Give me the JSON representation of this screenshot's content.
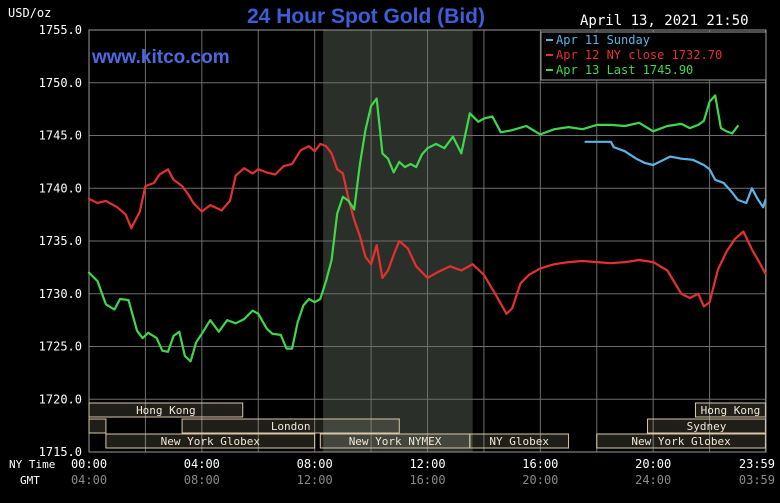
{
  "header": {
    "unit": "USD/oz",
    "title": "24 Hour Spot Gold (Bid)",
    "datetime": "April 13, 2021 21:50",
    "site": "www.kitco.com"
  },
  "colors": {
    "background": "#000000",
    "plot_bg": "#000000",
    "grid": "#6e6e6e",
    "title": "#3a5fd9",
    "site": "#4a6bdf",
    "shaded": "#2a2f2a",
    "session_fill": "#d8c7a6",
    "session_text": "#000000",
    "axis_text": "#ffffff"
  },
  "axis": {
    "left_label_top": "USD/oz",
    "row_label_ny": "NY Time",
    "row_label_gmt": "GMT"
  },
  "sessions": [
    {
      "label": "Hong Kong",
      "row": 0,
      "start": 0,
      "end": 5.45,
      "filled": true
    },
    {
      "label": "",
      "row": 1,
      "start": 0,
      "end": 0.6,
      "filled": true
    },
    {
      "label": "London",
      "row": 1,
      "start": 3.3,
      "end": 11.0,
      "filled": true
    },
    {
      "label": "New York Globex",
      "row": 2,
      "start": 0.6,
      "end": 8.0,
      "filled": true
    },
    {
      "label": "New York NYMEX",
      "row": 2,
      "start": 8.2,
      "end": 13.5,
      "filled": true
    },
    {
      "label": "NY Globex",
      "row": 2,
      "start": 13.5,
      "end": 17.0,
      "filled": true
    },
    {
      "label": "Hong Kong",
      "row": 0,
      "start": 21.5,
      "end": 23.98,
      "filled": true
    },
    {
      "label": "Sydney",
      "row": 1,
      "start": 19.8,
      "end": 23.98,
      "filled": true
    },
    {
      "label": "New York Globex",
      "row": 2,
      "start": 18.0,
      "end": 23.98,
      "filled": true
    }
  ],
  "chart_data": {
    "type": "line",
    "title": "24 Hour Spot Gold (Bid)",
    "xlabel": "NY Time",
    "ylabel": "USD/oz",
    "ylim": [
      1715,
      1755
    ],
    "xlim": [
      0,
      24
    ],
    "yticks": [
      "1715.0",
      "1720.0",
      "1725.0",
      "1730.0",
      "1735.0",
      "1740.0",
      "1745.0",
      "1750.0",
      "1755.0"
    ],
    "yticks_values": [
      1715,
      1720,
      1725,
      1730,
      1735,
      1740,
      1745,
      1750,
      1755
    ],
    "xticks_ny": [
      "00:00",
      "04:00",
      "08:00",
      "12:00",
      "16:00",
      "20:00",
      "23:59"
    ],
    "xticks_gmt": [
      "04:00",
      "08:00",
      "12:00",
      "16:00",
      "20:00",
      "24:00",
      "03:59"
    ],
    "xticks_values": [
      0,
      4,
      8,
      12,
      16,
      20,
      23.98
    ],
    "shaded_range": [
      8.3,
      13.6
    ],
    "grid": true,
    "legend_position": "top-right",
    "series": [
      {
        "name": "Apr 11 Sunday",
        "color": "#5ab4e6",
        "x": [
          17.6,
          18.0,
          18.5,
          18.6,
          19.0,
          19.4,
          19.7,
          20.0,
          20.3,
          20.6,
          21.0,
          21.4,
          21.8,
          22.0,
          22.2,
          22.5,
          22.8,
          23.0,
          23.3,
          23.5,
          23.7,
          23.9,
          23.98
        ],
        "values": [
          1744.4,
          1744.4,
          1744.4,
          1743.9,
          1743.5,
          1742.8,
          1742.4,
          1742.2,
          1742.6,
          1743.0,
          1742.8,
          1742.7,
          1742.2,
          1741.8,
          1740.8,
          1740.5,
          1739.6,
          1738.9,
          1738.6,
          1740.0,
          1739.0,
          1738.2,
          1738.9
        ]
      },
      {
        "name": "Apr 12 NY close 1732.70",
        "color": "#e53030",
        "x": [
          0,
          0.3,
          0.6,
          1.0,
          1.3,
          1.5,
          1.8,
          2.0,
          2.3,
          2.5,
          2.8,
          3.0,
          3.3,
          3.5,
          3.7,
          4.0,
          4.3,
          4.7,
          5.0,
          5.2,
          5.5,
          5.8,
          6.0,
          6.3,
          6.6,
          6.9,
          7.2,
          7.5,
          7.8,
          8.0,
          8.2,
          8.4,
          8.6,
          8.8,
          9.0,
          9.2,
          9.4,
          9.6,
          9.8,
          10.0,
          10.2,
          10.4,
          10.6,
          10.8,
          11.0,
          11.3,
          11.6,
          12.0,
          12.4,
          12.8,
          13.2,
          13.6,
          14.0,
          14.4,
          14.8,
          15.0,
          15.3,
          15.6,
          16.0,
          16.5,
          17.0,
          17.5,
          18.0,
          18.5,
          19.0,
          19.5,
          20.0,
          20.5,
          21.0,
          21.3,
          21.6,
          21.8,
          22.0,
          22.3,
          22.6,
          22.9,
          23.2,
          23.5,
          23.7,
          23.98
        ],
        "values": [
          1739.0,
          1738.6,
          1738.8,
          1738.2,
          1737.5,
          1736.2,
          1737.8,
          1740.2,
          1740.5,
          1741.3,
          1741.8,
          1740.8,
          1740.2,
          1739.5,
          1738.6,
          1737.8,
          1738.4,
          1737.9,
          1738.8,
          1741.2,
          1741.9,
          1741.4,
          1741.8,
          1741.5,
          1741.3,
          1742.1,
          1742.3,
          1743.6,
          1744.0,
          1743.5,
          1744.2,
          1744.0,
          1743.3,
          1741.8,
          1741.4,
          1739.0,
          1737.0,
          1735.5,
          1733.5,
          1732.8,
          1734.6,
          1731.5,
          1732.2,
          1733.7,
          1735.0,
          1734.3,
          1732.6,
          1731.5,
          1732.1,
          1732.6,
          1732.2,
          1732.8,
          1731.8,
          1730.0,
          1728.1,
          1728.6,
          1731.0,
          1731.8,
          1732.4,
          1732.8,
          1733.0,
          1733.1,
          1733.0,
          1732.9,
          1733.0,
          1733.2,
          1733.0,
          1732.2,
          1730.0,
          1729.6,
          1730.0,
          1728.8,
          1729.2,
          1732.3,
          1734.0,
          1735.2,
          1735.9,
          1734.2,
          1733.3,
          1731.9
        ]
      },
      {
        "name": "Apr 13 Last 1745.90",
        "color": "#3fd84a",
        "x": [
          0,
          0.3,
          0.6,
          0.9,
          1.1,
          1.4,
          1.7,
          1.9,
          2.1,
          2.4,
          2.6,
          2.8,
          3.0,
          3.2,
          3.4,
          3.6,
          3.8,
          4.0,
          4.3,
          4.6,
          4.9,
          5.2,
          5.5,
          5.8,
          6.0,
          6.3,
          6.5,
          6.8,
          7.0,
          7.2,
          7.4,
          7.6,
          7.8,
          8.0,
          8.2,
          8.4,
          8.6,
          8.8,
          9.0,
          9.2,
          9.4,
          9.6,
          9.8,
          10.0,
          10.2,
          10.4,
          10.6,
          10.8,
          11.0,
          11.2,
          11.4,
          11.6,
          11.8,
          12.0,
          12.3,
          12.6,
          12.9,
          13.2,
          13.5,
          13.8,
          14.0,
          14.3,
          14.6,
          15.0,
          15.5,
          16.0,
          16.5,
          17.0,
          17.5,
          18.0,
          18.5,
          19.0,
          19.5,
          20.0,
          20.5,
          21.0,
          21.3,
          21.6,
          21.8,
          22.0,
          22.2,
          22.4,
          22.6,
          22.8,
          23.0
        ],
        "values": [
          1732.0,
          1731.2,
          1729.0,
          1728.5,
          1729.5,
          1729.4,
          1726.5,
          1725.8,
          1726.3,
          1725.8,
          1724.6,
          1724.5,
          1726.0,
          1726.4,
          1724.1,
          1723.6,
          1725.4,
          1726.2,
          1727.5,
          1726.4,
          1727.5,
          1727.2,
          1727.6,
          1728.4,
          1728.1,
          1726.7,
          1726.2,
          1726.1,
          1724.8,
          1724.8,
          1727.3,
          1728.9,
          1729.5,
          1729.2,
          1729.5,
          1731.2,
          1733.2,
          1737.6,
          1739.2,
          1738.8,
          1738.0,
          1742.2,
          1745.5,
          1747.8,
          1748.5,
          1743.3,
          1742.8,
          1741.5,
          1742.5,
          1742.0,
          1742.3,
          1742.0,
          1743.2,
          1743.8,
          1744.2,
          1743.8,
          1744.9,
          1743.3,
          1747.1,
          1746.3,
          1746.6,
          1746.8,
          1745.3,
          1745.5,
          1745.9,
          1745.1,
          1745.6,
          1745.8,
          1745.6,
          1746.0,
          1746.0,
          1745.9,
          1746.2,
          1745.4,
          1745.9,
          1746.1,
          1745.7,
          1746.0,
          1746.4,
          1748.2,
          1748.8,
          1745.7,
          1745.4,
          1745.2,
          1745.9
        ]
      }
    ]
  }
}
